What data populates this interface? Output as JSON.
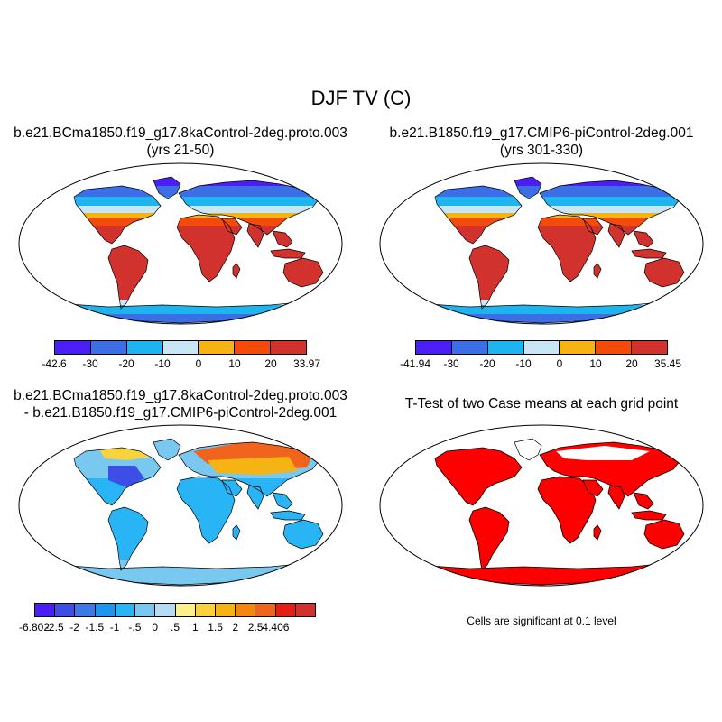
{
  "title": "DJF TV (C)",
  "panels": [
    {
      "id": "case1",
      "title_line1": "b.e21.BCma1850.f19_g17.8kaControl-2deg.proto.003",
      "title_line2": "(yrs 21-50)",
      "colorbar": {
        "colors": [
          "#4b1ef5",
          "#3c6ee6",
          "#1eb4f0",
          "#c8e6f5",
          "#f5b414",
          "#f54b0a",
          "#d2322d"
        ],
        "labels": [
          "-42.6",
          "-30",
          "-20",
          "-10",
          "0",
          "10",
          "20",
          "33.97"
        ]
      }
    },
    {
      "id": "case2",
      "title_line1": "b.e21.B1850.f19_g17.CMIP6-piControl-2deg.001",
      "title_line2": "(yrs 301-330)",
      "colorbar": {
        "colors": [
          "#4b1ef5",
          "#3c6ee6",
          "#1eb4f0",
          "#c8e6f5",
          "#f5b414",
          "#f54b0a",
          "#d2322d"
        ],
        "labels": [
          "-41.94",
          "-30",
          "-20",
          "-10",
          "0",
          "10",
          "20",
          "35.45"
        ]
      }
    },
    {
      "id": "diff",
      "title_line1": "b.e21.BCma1850.f19_g17.8kaControl-2deg.proto.003",
      "title_line2": "- b.e21.B1850.f19_g17.CMIP6-piControl-2deg.001",
      "colorbar": {
        "colors": [
          "#4b1ef5",
          "#3c4ee6",
          "#3c78e6",
          "#1e96f0",
          "#28b4f5",
          "#78c8f0",
          "#b4dcf5",
          "#fff08c",
          "#fad23c",
          "#f5b414",
          "#f5870f",
          "#f0641e",
          "#e61e14",
          "#d2322d"
        ],
        "labels": [
          "-6.802",
          "-2.5",
          "-2",
          "-1.5",
          "-1",
          "-.5",
          "0",
          ".5",
          "1",
          "1.5",
          "2",
          "2.5",
          "4.406"
        ]
      }
    },
    {
      "id": "ttest",
      "title_line1": "T-Test of two Case means at each grid point",
      "note": "Cells are significant at 0.1 level"
    }
  ]
}
